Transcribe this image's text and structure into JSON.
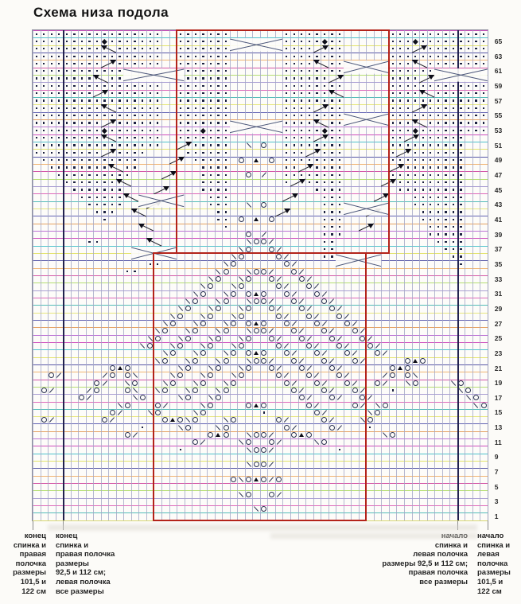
{
  "title": "Схема низа подола",
  "chart": {
    "cols": 60,
    "rows": 66,
    "cell_w": 9.53,
    "cell_h": 9.33,
    "row_labels": [
      65,
      63,
      61,
      59,
      57,
      55,
      53,
      51,
      49,
      47,
      45,
      43,
      41,
      39,
      37,
      35,
      33,
      31,
      29,
      27,
      25,
      23,
      21,
      19,
      17,
      15,
      13,
      11,
      9,
      7,
      5,
      3,
      1
    ],
    "heavy_cols": [
      4,
      56
    ],
    "tick_cols": [
      0,
      4,
      56,
      60
    ],
    "red_boxes": [
      {
        "c0": 19,
        "c1": 47,
        "r0": 0,
        "r1": 30
      },
      {
        "c0": 16,
        "c1": 44,
        "r0": 30,
        "r1": 66
      }
    ],
    "colors": {
      "red": "#b3231a",
      "vline": "#a2a6c6",
      "vline_heavy": "#22224e",
      "symbol": "#2b3352",
      "hline_palette": [
        "#c52fb4",
        "#2fb9c5",
        "#dede52",
        "#3a3a9a",
        "#eda75a",
        "#cc3a9a",
        "#a8d85a",
        "#9a8ccc",
        "#d84fb0",
        "#36b0ae",
        "#e3e36a",
        "#4848a8",
        "#e09048",
        "#b05ad0"
      ]
    },
    "legend_symbols": {
      ".": "purl-dot",
      "d": "bobble-diamond",
      "o": "yarn-over",
      "/": "k2tog",
      "\\": "ssk",
      "A": "double-decrease"
    },
    "grid_rows": [
      [
        "..........",
        ".......  .",
        "......    ",
        "   .......",
        ".      ...",
        ".........."
      ],
      [
        ".........d",
        ".......  .",
        "......    ",
        "   .....d.",
        ".      ...",
        "d........."
      ],
      [
        "......... ",
        " ......  .",
        "......    ",
        "   ....  .",
        ".      ...",
        "  ........"
      ],
      [
        "..........",
        ".......  .",
        "......    ",
        "   .......",
        ".      ...",
        ".........."
      ],
      [
        "......... ",
        " ......  .",
        "......    ",
        "   ....  .",
        ".      ...",
        "  ........"
      ],
      [
        "..........",
        "..        ",
        "......    ",
        "   .......",
        ".      ...",
        "...       "
      ],
      [
        "........  ",
        "..        ",
        "......    ",
        "   ...... ",
        "       ...",
        ".         "
      ],
      [
        "..........",
        ".......  .",
        "......    ",
        "   .......",
        ".      ...",
        ".........."
      ],
      [
        "........  ",
        ".......  .",
        "......    ",
        "   ...... ",
        "       ...",
        ".  ......."
      ],
      [
        "..........",
        ".......  .",
        "......    ",
        "   .......",
        ".      ...",
        ".........."
      ],
      [
        "......... ",
        " ......  .",
        "......    ",
        "   ....  .",
        ".      ...",
        "  ........"
      ],
      [
        "..........",
        ".......  .",
        "......    ",
        "   .......",
        ".      ...",
        ".........."
      ],
      [
        "......... ",
        " ......  .",
        "......    ",
        "   ....  .",
        ".      ...",
        "  ........"
      ],
      [
        ".........d",
        ".......  .",
        "..d...    ",
        "   .....d.",
        ".      ...",
        "d........."
      ],
      [
        "......... ",
        " ......  .",
        "......    ",
        "   ....  .",
        ".      .. ",
        " ......   "
      ],
      [
        "..........",
        ".......   ",
        " .....  \\ ",
        "o  .......",
        ".      ...",
        ".......   "
      ],
      [
        "......... ",
        " ....     ",
        "......    ",
        "   ...  ..",
        ".      .  ",
        ".......   "
      ],
      [
        " .........",
        "....      ",
        " ..... o A",
        " o .......",
        ".      ...",
        ".......   "
      ],
      [
        "  ........",
        "  ..      ",
        "  ....    ",
        "   ..  ...",
        ".        .",
        ".......   "
      ],
      [
        "   .......",
        "...       ",
        "  ....  o ",
        "/  .......",
        ".      ...",
        ".......   "
      ],
      [
        "    ......",
        ".         ",
        "  ....    ",
        "   .  ....",
        ".       ..",
        ".......   "
      ],
      [
        "     .....",
        "..        ",
        "  ....    ",
        "       ...",
        ".       ..",
        ".......   "
      ],
      [
        "      ....",
        "..        ",
        "   ...    ",
        "        ..",
        ".         ",
        ".......   "
      ],
      [
        "       ...",
        "..        ",
        "   ...  \\ ",
        "o       ..",
        ".         ",
        ".......   "
      ],
      [
        "        ..",
        ".         ",
        "    ..    ",
        "        ..",
        ".         ",
        " ......   "
      ],
      [
        "         .",
        "          ",
        "    .. o A",
        " o      ..",
        ".         ",
        " ......   "
      ],
      [
        "          ",
        "          ",
        "     .    ",
        "        ..",
        ".         ",
        "  .....   "
      ],
      [
        "          ",
        "          ",
        "        o ",
        "/       ..",
        ".         ",
        "  .....   "
      ],
      [
        "       .. ",
        "          ",
        "        \\o",
        "o/      ..",
        "          ",
        "   ....   "
      ],
      [
        "          ",
        "          ",
        "       \\o ",
        " o/     ..",
        "          ",
        "    ...   "
      ],
      [
        "          ",
        "          ",
        "      \\o  ",
        "  o/    ..",
        "          ",
        "     ..   "
      ],
      [
        "          ",
        "     ..   ",
        "     \\o   ",
        "   o/     ",
        "          ",
        "      .   "
      ],
      [
        "          ",
        "  ..      ",
        "    \\o  \\o",
        "o/  o/    ",
        "          ",
        "          "
      ],
      [
        "          ",
        "          ",
        "   \\o  \\o ",
        " o/  o/   ",
        "          ",
        "          "
      ],
      [
        "          ",
        "          ",
        "  \\o  \\o  ",
        "  o/  o/  ",
        "          ",
        "          "
      ],
      [
        "          ",
        "          ",
        " \\o  \\o oA",
        "o  o/  o/ ",
        "          ",
        "          "
      ],
      [
        "          ",
        "          ",
        "\\o  \\o  \\o",
        "o/  o/  o/",
        "          ",
        "          "
      ],
      [
        "          ",
        "         \\",
        "o  \\o  \\o ",
        " o/  o/  o",
        "/         ",
        "          "
      ],
      [
        "          ",
        "        \\o",
        "  \\o  \\o  ",
        "  o/  o/  ",
        "o/        ",
        "          "
      ],
      [
        "          ",
        "       \\o ",
        " \\o  \\o oA",
        "o  o/  o/ ",
        " o/       ",
        "          "
      ],
      [
        "          ",
        "      \\o  ",
        "\\o  \\o  \\o",
        "o/  o/  o/",
        "  o/      ",
        "          "
      ],
      [
        "          ",
        "     \\o  \\",
        "o  \\o  \\o ",
        " o/  o/  o",
        "/  o/     ",
        "          "
      ],
      [
        "          ",
        "    \\o  \\o",
        "  \\o  \\o  ",
        "  o/  o/  ",
        "o/  o/    ",
        "          "
      ],
      [
        "          ",
        "       \\o ",
        " \\o  \\o oA",
        "o  o/  o/ ",
        " o/  o/   ",
        "          "
      ],
      [
        "          ",
        "      \\o  ",
        "\\o  \\o  \\o",
        "o/  o/  o/",
        "  o/     o",
        "Ao        "
      ],
      [
        "          ",
        "oAo      \\",
        "o  \\o  \\o ",
        " o/  o/  o",
        "/      oAo",
        "          "
      ],
      [
        "  o/     /",
        "o o\\    \\o",
        "  \\o  \\o  ",
        "  o/  o/  ",
        "o/    /o o",
        "\\         "
      ],
      [
        "        o/",
        "  \\o   \\o ",
        " \\o  \\o   ",
        "   o/  o/ ",
        " o/  o/  \\",
        "o    \\o   "
      ],
      [
        " o/    /o ",
        "  o\\  \\o  ",
        "\\o  \\o    ",
        "    o/  o/",
        "  o/   .  ",
        "      \\o  "
      ],
      [
        "      o/  ",
        "   \\o    \\",
        "o  \\o     ",
        "     o/  o",
        "/  o/     ",
        "       \\o "
      ],
      [
        "          ",
        " \\o   o/  ",
        "  \\o    oA",
        "o     o/  ",
        "  o/ \\o   ",
        "        \\o"
      ],
      [
        "          ",
        "o/   \\o   ",
        " \\o       ",
        ".      o/ ",
        "    \\o    ",
        "          "
      ],
      [
        " o/      o",
        "/      oAo",
        "\\o   \\o   ",
        "  o/    o/",
        "   \\o     ",
        "          "
      ],
      [
        "          ",
        "    .    \\",
        "o   \\o    ",
        "   o/    o",
        "/   .     ",
        "          "
      ],
      [
        "          ",
        "  o/      ",
        "   oAo  \\o",
        "o/  oAo   ",
        "      \\o  ",
        "          "
      ],
      [
        "          ",
        "          ",
        " o/    \\o ",
        " o/    \\o ",
        "          ",
        "          "
      ],
      [
        "          ",
        "         .",
        "        \\o",
        "o/        ",
        ".         ",
        "          "
      ],
      [
        "          ",
        "          ",
        "          ",
        "          ",
        "          ",
        "          "
      ],
      [
        "          ",
        "          ",
        "        \\o",
        "o/        ",
        "          ",
        "          "
      ],
      [
        "          ",
        "          ",
        "          ",
        "          ",
        "          ",
        "          "
      ],
      [
        "          ",
        "          ",
        "      o\\oA",
        "o/o       ",
        "          ",
        "          "
      ],
      [
        "          ",
        "          ",
        "          ",
        "          ",
        "          ",
        "          "
      ],
      [
        "          ",
        "          ",
        "       \\o ",
        " o/       ",
        "          ",
        "          "
      ],
      [
        "          ",
        "          ",
        "          ",
        "          ",
        "          ",
        "          "
      ],
      [
        "          ",
        "          ",
        "         \\",
        "o         ",
        "          ",
        "          "
      ],
      [
        "          ",
        "          ",
        "          ",
        "          ",
        "          ",
        "          "
      ]
    ],
    "wedges": [
      [
        3,
        10,
        "f"
      ],
      [
        5,
        10,
        "r"
      ],
      [
        7,
        9,
        "f"
      ],
      [
        9,
        9,
        "r"
      ],
      [
        11,
        10,
        "f"
      ],
      [
        13,
        10,
        "r"
      ],
      [
        15,
        10,
        "f"
      ],
      [
        17,
        10,
        "r"
      ],
      [
        19,
        11,
        "f"
      ],
      [
        21,
        12,
        "f"
      ],
      [
        23,
        13,
        "f"
      ],
      [
        25,
        14,
        "f"
      ],
      [
        27,
        15,
        "f"
      ],
      [
        29,
        16,
        "f"
      ],
      [
        16,
        20,
        "r"
      ],
      [
        18,
        19,
        "r"
      ],
      [
        20,
        18,
        "r"
      ],
      [
        22,
        17,
        "r"
      ],
      [
        24,
        16,
        "r"
      ],
      [
        3,
        38,
        "r"
      ],
      [
        5,
        38,
        "f"
      ],
      [
        7,
        40,
        "r"
      ],
      [
        9,
        40,
        "f"
      ],
      [
        11,
        38,
        "r"
      ],
      [
        13,
        38,
        "f"
      ],
      [
        15,
        38,
        "r"
      ],
      [
        17,
        37,
        "r"
      ],
      [
        19,
        36,
        "r"
      ],
      [
        21,
        35,
        "r"
      ],
      [
        23,
        34,
        "r"
      ],
      [
        25,
        33,
        "r"
      ],
      [
        3,
        51,
        "r"
      ],
      [
        5,
        51,
        "f"
      ],
      [
        7,
        52,
        "r"
      ],
      [
        9,
        52,
        "f"
      ],
      [
        11,
        51,
        "r"
      ],
      [
        13,
        51,
        "f"
      ],
      [
        15,
        50,
        "r"
      ],
      [
        17,
        49,
        "r"
      ],
      [
        19,
        48,
        "r"
      ],
      [
        21,
        47,
        "r"
      ],
      [
        23,
        46,
        "r"
      ],
      [
        25,
        45,
        "r"
      ],
      [
        27,
        44,
        "r"
      ]
    ],
    "lenses": [
      [
        2,
        27,
        7
      ],
      [
        5,
        42,
        6
      ],
      [
        6,
        13,
        8
      ],
      [
        6,
        54,
        7
      ],
      [
        12,
        42,
        6
      ],
      [
        13,
        27,
        7
      ],
      [
        23,
        15,
        6
      ],
      [
        24,
        42,
        6
      ],
      [
        30,
        14,
        6
      ],
      [
        31,
        41,
        6
      ]
    ]
  },
  "legend": {
    "blocks": [
      {
        "align": "right",
        "lines": [
          "конец",
          "спинка и",
          "правая",
          "полочка",
          "размеры",
          "101,5 и",
          "122 см"
        ]
      },
      {
        "align": "left",
        "lines": [
          "конец",
          "спинка и",
          "правая полочка",
          "размеры",
          "92,5 и 112 см;",
          "левая полочка",
          "все размеры"
        ]
      },
      {
        "align": "right",
        "lines": [
          "начало",
          "спинка и",
          "левая полочка",
          "размеры 92,5 и 112 см;",
          "правая полочка",
          "все размеры"
        ]
      },
      {
        "align": "left",
        "lines": [
          "начало",
          "спинка и",
          "левая",
          "полочка",
          "размеры",
          "101,5 и",
          "122 см"
        ]
      }
    ]
  }
}
